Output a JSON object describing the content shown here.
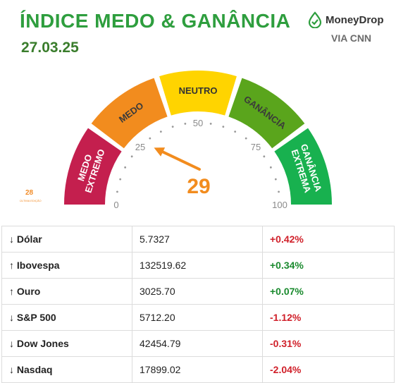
{
  "header": {
    "title": "ÍNDICE MEDO & GANÂNCIA",
    "date": "27.03.25",
    "logo_text": "MoneyDrop",
    "via": "VIA CNN"
  },
  "gauge": {
    "value": 29,
    "value_label": "29",
    "segments": [
      {
        "label_lines": [
          "MEDO",
          "EXTREMO"
        ],
        "color": "#c41f4e"
      },
      {
        "label_lines": [
          "MEDO"
        ],
        "color": "#f28c1e"
      },
      {
        "label_lines": [
          "NEUTRO"
        ],
        "color": "#ffd400"
      },
      {
        "label_lines": [
          "GANÂNCIA"
        ],
        "color": "#5aa51c"
      },
      {
        "label_lines": [
          "GANÂNCIA",
          "EXTREMA"
        ],
        "color": "#18b14f"
      }
    ],
    "tick_labels": [
      "0",
      "25",
      "50",
      "75",
      "100"
    ],
    "last_value": "28",
    "last_value_label": "ÚLTIMA EDIÇÃO",
    "arrow_color": "#f28c1e"
  },
  "markets": [
    {
      "arrow": "↓",
      "name": "Dólar",
      "value": "5.7327",
      "change": "+0.42%",
      "change_color": "neg"
    },
    {
      "arrow": "↑",
      "name": "Ibovespa",
      "value": "132519.62",
      "change": "+0.34%",
      "change_color": "pos"
    },
    {
      "arrow": "↑",
      "name": "Ouro",
      "value": "3025.70",
      "change": "+0.07%",
      "change_color": "pos"
    },
    {
      "arrow": "↓",
      "name": "S&P 500",
      "value": "5712.20",
      "change": "-1.12%",
      "change_color": "neg"
    },
    {
      "arrow": "↓",
      "name": "Dow Jones",
      "value": "42454.79",
      "change": "-0.31%",
      "change_color": "neg"
    },
    {
      "arrow": "↓",
      "name": "Nasdaq",
      "value": "17899.02",
      "change": "-2.04%",
      "change_color": "neg"
    }
  ]
}
